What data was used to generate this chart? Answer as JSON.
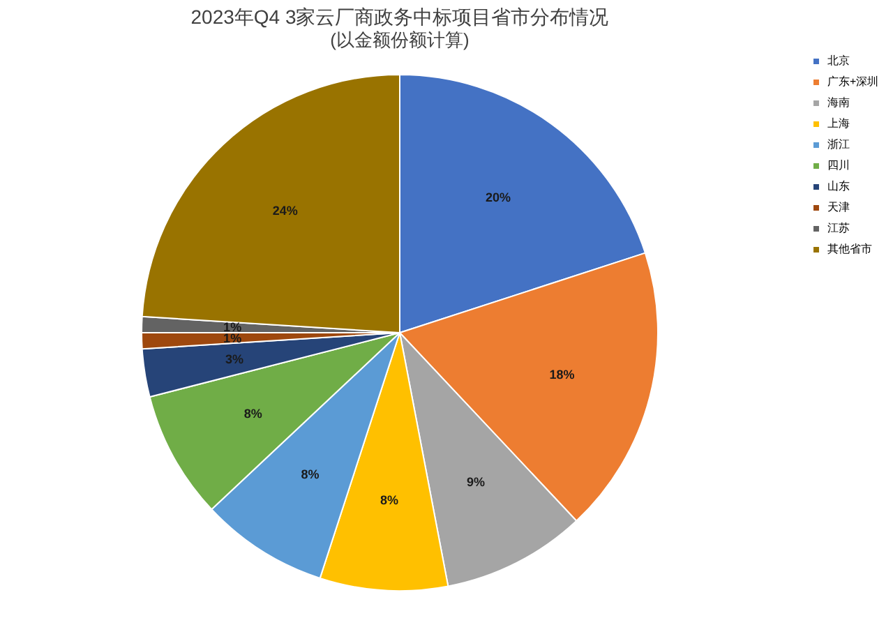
{
  "chart_data": {
    "type": "pie",
    "title": "2023年Q4 3家云厂商政务中标项目省市分布情况",
    "subtitle": "(以金额份额计算)",
    "categories": [
      "北京",
      "广东+深圳",
      "海南",
      "上海",
      "浙江",
      "四川",
      "山东",
      "天津",
      "江苏",
      "其他省市"
    ],
    "values": [
      20,
      18,
      9,
      8,
      8,
      8,
      3,
      1,
      1,
      24
    ],
    "colors": [
      "#4472c4",
      "#ed7d31",
      "#a5a5a5",
      "#ffc000",
      "#5b9bd5",
      "#70ad47",
      "#264478",
      "#9e480e",
      "#636363",
      "#997300"
    ],
    "value_labels": [
      "20%",
      "18%",
      "9%",
      "8%",
      "8%",
      "8%",
      "3%",
      "1%",
      "1%",
      "24%"
    ],
    "legend": "right"
  }
}
